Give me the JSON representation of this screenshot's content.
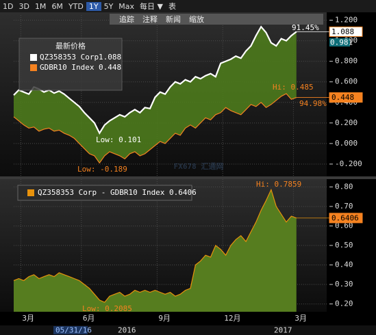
{
  "toolbar": {
    "ranges": [
      "1D",
      "3D",
      "1M",
      "6M",
      "YTD",
      "1Y",
      "5Y",
      "Max"
    ],
    "freq": "每日 ▼",
    "table": "表",
    "actions": [
      "追踪",
      "注释",
      "新闻",
      "缩放"
    ]
  },
  "watermark": "FX678 汇通网",
  "x_footer": [
    "05/31/16",
    "2016",
    "2017"
  ],
  "chart_data": [
    {
      "type": "line",
      "legend_title": "最新价格",
      "categories": [
        null,
        null,
        null,
        null,
        null,
        null,
        null,
        null,
        null,
        null,
        null,
        null,
        null,
        null,
        null,
        null,
        null,
        null,
        null,
        null,
        null,
        null,
        null,
        null,
        null,
        null,
        null,
        null,
        null,
        null,
        null,
        null,
        null,
        null,
        null,
        null,
        null,
        null,
        null,
        null,
        null,
        null,
        null,
        null,
        null,
        null,
        null,
        null,
        null,
        null,
        null,
        null,
        null,
        null,
        null,
        null,
        null
      ],
      "xlim": [
        0,
        62
      ],
      "xticks": [
        {
          "value": 1,
          "label": "3月"
        },
        {
          "value": 13,
          "label": "6月"
        },
        {
          "value": 28,
          "label": "9月"
        },
        {
          "value": 41,
          "label": "12月"
        },
        {
          "value": 55,
          "label": "3月"
        }
      ],
      "ylim": [
        -0.32,
        1.25
      ],
      "yticks": [
        {
          "value": 1.2,
          "label": "1.200"
        },
        {
          "value": 1,
          "label": "1.000"
        },
        {
          "value": 0.8,
          "label": "0.800"
        },
        {
          "value": 0.6,
          "label": "0.600"
        },
        {
          "value": 0.4,
          "label": "0.400"
        },
        {
          "value": 0.2,
          "label": "0.200"
        },
        {
          "value": 0,
          "label": "0.000"
        },
        {
          "value": -0.2,
          "label": "-0.200"
        }
      ],
      "fill_color": "#4d7a1c",
      "series": [
        {
          "name": "QZ358353 Corp",
          "color": "#ffffff",
          "values": [
            0.47,
            0.52,
            0.5,
            0.48,
            0.55,
            0.53,
            0.5,
            0.52,
            0.49,
            0.51,
            0.48,
            0.44,
            0.4,
            0.36,
            0.3,
            0.25,
            0.2,
            0.101,
            0.18,
            0.22,
            0.25,
            0.28,
            0.26,
            0.3,
            0.33,
            0.3,
            0.35,
            0.34,
            0.45,
            0.5,
            0.48,
            0.55,
            0.6,
            0.58,
            0.62,
            0.6,
            0.65,
            0.63,
            0.66,
            0.68,
            0.65,
            0.78,
            0.8,
            0.82,
            0.85,
            0.83,
            0.9,
            0.95,
            1.05,
            1.136,
            1.08,
            0.98,
            0.95,
            1.02,
            1.0,
            1.05,
            1.088
          ]
        },
        {
          "name": "GDBR10 Index",
          "color": "#f58220",
          "values": [
            0.26,
            0.22,
            0.18,
            0.15,
            0.16,
            0.12,
            0.14,
            0.15,
            0.12,
            0.13,
            0.1,
            0.08,
            0.05,
            0.0,
            -0.05,
            -0.1,
            -0.12,
            -0.189,
            -0.12,
            -0.08,
            -0.1,
            -0.12,
            -0.15,
            -0.1,
            -0.08,
            -0.12,
            -0.1,
            -0.06,
            -0.02,
            0.02,
            0.0,
            0.05,
            0.1,
            0.08,
            0.15,
            0.18,
            0.15,
            0.2,
            0.25,
            0.23,
            0.28,
            0.3,
            0.35,
            0.32,
            0.3,
            0.28,
            0.33,
            0.38,
            0.36,
            0.4,
            0.35,
            0.38,
            0.42,
            0.46,
            0.485,
            0.43,
            0.448
          ]
        }
      ],
      "annotations": [
        "91.45%",
        "Hi: 0.485",
        "94.98%",
        "Low: 0.101",
        "Low: -0.189",
        "0.981"
      ]
    },
    {
      "type": "area",
      "title": "QZ358353 Corp - GDBR10 Index 0.6406",
      "categories": [
        null,
        null,
        null,
        null,
        null,
        null,
        null,
        null,
        null,
        null,
        null,
        null,
        null,
        null,
        null,
        null,
        null,
        null,
        null,
        null,
        null,
        null,
        null,
        null,
        null,
        null,
        null,
        null,
        null,
        null,
        null,
        null,
        null,
        null,
        null,
        null,
        null,
        null,
        null,
        null,
        null,
        null,
        null,
        null,
        null,
        null,
        null,
        null,
        null,
        null,
        null,
        null,
        null,
        null,
        null,
        null,
        null
      ],
      "xlim": [
        0,
        62
      ],
      "ylim": [
        0.16,
        0.84
      ],
      "yticks": [
        {
          "value": 0.8,
          "label": "0.80"
        },
        {
          "value": 0.7,
          "label": "0.70"
        },
        {
          "value": 0.6,
          "label": "0.60"
        },
        {
          "value": 0.5,
          "label": "0.50"
        },
        {
          "value": 0.4,
          "label": "0.40"
        },
        {
          "value": 0.3,
          "label": "0.30"
        },
        {
          "value": 0.2,
          "label": "0.20"
        }
      ],
      "fill_color": "#567d1f",
      "series": [
        {
          "name": "QZ358353 Corp - GDBR10 Index",
          "color": "#e8920c",
          "values": [
            0.32,
            0.33,
            0.32,
            0.34,
            0.35,
            0.33,
            0.34,
            0.35,
            0.34,
            0.36,
            0.35,
            0.34,
            0.33,
            0.32,
            0.3,
            0.28,
            0.25,
            0.22,
            0.2085,
            0.24,
            0.25,
            0.26,
            0.24,
            0.25,
            0.27,
            0.26,
            0.27,
            0.26,
            0.27,
            0.26,
            0.25,
            0.26,
            0.24,
            0.25,
            0.27,
            0.28,
            0.4,
            0.42,
            0.45,
            0.44,
            0.5,
            0.48,
            0.45,
            0.5,
            0.53,
            0.55,
            0.52,
            0.57,
            0.62,
            0.68,
            0.73,
            0.7859,
            0.7,
            0.66,
            0.62,
            0.65,
            0.6406
          ]
        }
      ],
      "annotations": [
        "Hi: 0.7859",
        "Low: 0.2085"
      ]
    }
  ]
}
